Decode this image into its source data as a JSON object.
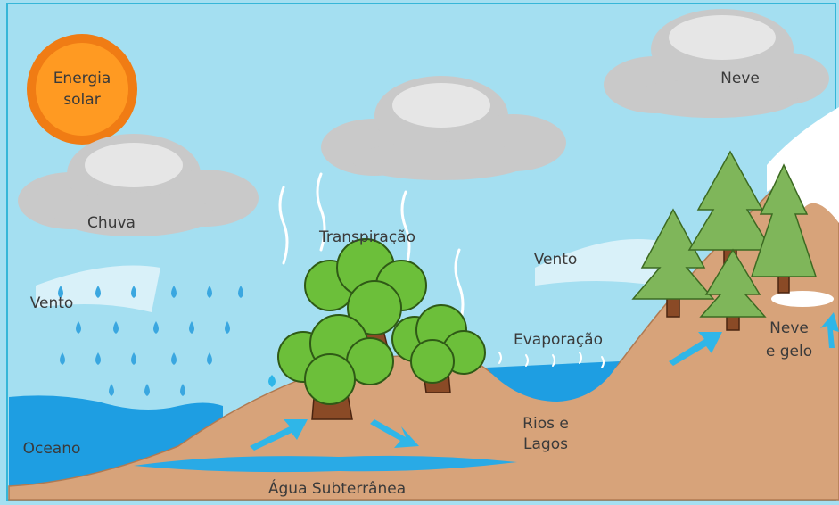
{
  "labels": {
    "solar_energy": [
      "Energia",
      "solar"
    ],
    "rain": "Chuva",
    "wind_left": "Vento",
    "transpiration": "Transpiração",
    "wind_right": "Vento",
    "evaporation": "Evaporação",
    "snow": "Neve",
    "snow_ice": [
      "Neve",
      "e gelo"
    ],
    "ocean": "Oceano",
    "rivers_lakes": [
      "Rios e",
      "Lagos"
    ],
    "groundwater": "Água Subterrânea"
  }
}
